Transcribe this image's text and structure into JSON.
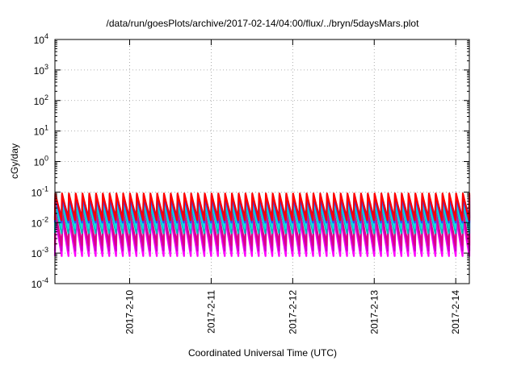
{
  "chart_data": {
    "type": "line",
    "title": "/data/run/goesPlots/archive/2017-02-14/04:00/flux/../bryn/5daysMars.plot",
    "xlabel": "Coordinated Universal Time (UTC)",
    "ylabel": "cGy/day",
    "yscale": "log",
    "ylim_exp": [
      -4,
      4
    ],
    "y_ticks": [
      {
        "base": "10",
        "exp": "-4"
      },
      {
        "base": "10",
        "exp": "-3"
      },
      {
        "base": "10",
        "exp": "-2"
      },
      {
        "base": "10",
        "exp": "-1"
      },
      {
        "base": "10",
        "exp": "0"
      },
      {
        "base": "10",
        "exp": "1"
      },
      {
        "base": "10",
        "exp": "2"
      },
      {
        "base": "10",
        "exp": "3"
      },
      {
        "base": "10",
        "exp": "4"
      }
    ],
    "xlim": [
      "2017-02-09 02:00",
      "2017-02-14 04:00"
    ],
    "x_ticks": [
      "2017-2-10",
      "2017-2-11",
      "2017-2-12",
      "2017-2-13",
      "2017-2-14"
    ],
    "grid": true,
    "sawtooth_period_hours": 2.0,
    "series": [
      {
        "color": "#ff00ff",
        "peak": 0.013,
        "trough": 0.0008
      },
      {
        "color": "#cc00cc",
        "peak": 0.018,
        "trough": 0.0012
      },
      {
        "color": "#dd0088",
        "peak": 0.022,
        "trough": 0.0018
      },
      {
        "color": "#00bbbb",
        "peak": 0.04,
        "trough": 0.0045
      },
      {
        "color": "#11dddd",
        "peak": 0.05,
        "trough": 0.0065
      },
      {
        "color": "#3344ff",
        "peak": 0.065,
        "trough": 0.01
      },
      {
        "color": "#2222cc",
        "peak": 0.08,
        "trough": 0.014
      },
      {
        "color": "#ff0000",
        "peak": 0.09,
        "trough": 0.012
      }
    ]
  }
}
